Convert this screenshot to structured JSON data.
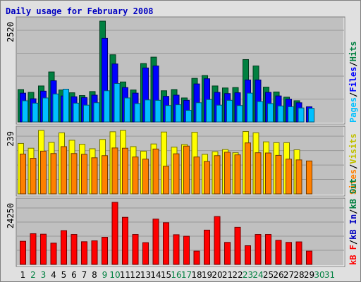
{
  "title": "Daily usage for February 2008",
  "colors": {
    "background": "#e0e0e0",
    "panel": "#c0c0c0",
    "hits": "#008040",
    "files": "#0000ff",
    "pages": "#00c0ff",
    "visits": "#ffff00",
    "sites": "#ff8000",
    "kbytes": "#ff0000",
    "weekend_label": "#008040",
    "weekday_label": "#000000",
    "title": "#0000c0"
  },
  "chart_data": [
    {
      "type": "bar",
      "panel": "hits-files-pages",
      "ymax_label": "2520",
      "ymax": 2520,
      "legend": [
        {
          "text": "Pages",
          "color": "#00c0ff"
        },
        {
          "text": "/",
          "color": "#000000"
        },
        {
          "text": "Files",
          "color": "#0000ff"
        },
        {
          "text": "/",
          "color": "#000000"
        },
        {
          "text": "Hits",
          "color": "#008040"
        }
      ],
      "categories": [
        "1",
        "2",
        "3",
        "4",
        "5",
        "6",
        "7",
        "8",
        "9",
        "10",
        "11",
        "12",
        "13",
        "14",
        "15",
        "16",
        "17",
        "18",
        "19",
        "20",
        "21",
        "22",
        "23",
        "24",
        "25",
        "26",
        "27",
        "28",
        "29"
      ],
      "series": [
        {
          "name": "Hits",
          "color": "#008040",
          "values": [
            810,
            740,
            900,
            1250,
            800,
            730,
            660,
            760,
            2520,
            1680,
            1000,
            800,
            1460,
            1620,
            780,
            810,
            600,
            1090,
            1160,
            900,
            850,
            860,
            1560,
            1400,
            870,
            750,
            620,
            530,
            0
          ]
        },
        {
          "name": "Files",
          "color": "#0000ff",
          "values": [
            720,
            580,
            770,
            1030,
            650,
            630,
            610,
            670,
            2090,
            1450,
            860,
            720,
            1350,
            1400,
            640,
            670,
            540,
            950,
            1080,
            740,
            710,
            730,
            1050,
            1050,
            740,
            650,
            570,
            480,
            380
          ]
        },
        {
          "name": "Pages",
          "color": "#00c0ff",
          "values": [
            530,
            470,
            600,
            700,
            820,
            470,
            420,
            480,
            780,
            960,
            600,
            460,
            550,
            540,
            410,
            430,
            290,
            480,
            560,
            420,
            540,
            410,
            720,
            510,
            460,
            400,
            380,
            350,
            340
          ]
        }
      ]
    },
    {
      "type": "bar",
      "panel": "visits-sites",
      "ymax_label": "239",
      "ymax": 239,
      "legend": [
        {
          "text": "Sites",
          "color": "#ff8000"
        },
        {
          "text": "/",
          "color": "#000000"
        },
        {
          "text": "Visits",
          "color": "#c0c000"
        }
      ],
      "categories": [
        "1",
        "2",
        "3",
        "4",
        "5",
        "6",
        "7",
        "8",
        "9",
        "10",
        "11",
        "12",
        "13",
        "14",
        "15",
        "16",
        "17",
        "18",
        "19",
        "20",
        "21",
        "22",
        "23",
        "24",
        "25",
        "26",
        "27",
        "28",
        "29"
      ],
      "series": [
        {
          "name": "Visits",
          "color": "#ffff00",
          "values": [
            190,
            172,
            239,
            194,
            230,
            202,
            187,
            170,
            205,
            234,
            239,
            178,
            161,
            188,
            233,
            176,
            186,
            232,
            149,
            159,
            167,
            155,
            235,
            230,
            196,
            193,
            193,
            166,
            0
          ]
        },
        {
          "name": "Sites",
          "color": "#ff8000",
          "values": [
            150,
            134,
            161,
            152,
            178,
            152,
            149,
            136,
            144,
            173,
            172,
            139,
            131,
            169,
            104,
            151,
            180,
            139,
            122,
            144,
            157,
            147,
            192,
            155,
            154,
            145,
            131,
            128,
            124
          ]
        }
      ]
    },
    {
      "type": "bar",
      "panel": "kbytes",
      "ymax_label": "24250",
      "ymax": 24250,
      "legend": [
        {
          "text": "kB F",
          "color": "#ff0000"
        },
        {
          "text": "/",
          "color": "#000000"
        },
        {
          "text": "kB In",
          "color": "#0000c0"
        },
        {
          "text": "/",
          "color": "#000000"
        },
        {
          "text": "kB Out",
          "color": "#008040"
        }
      ],
      "categories": [
        "1",
        "2",
        "3",
        "4",
        "5",
        "6",
        "7",
        "8",
        "9",
        "10",
        "11",
        "12",
        "13",
        "14",
        "15",
        "16",
        "17",
        "18",
        "19",
        "20",
        "21",
        "22",
        "23",
        "24",
        "25",
        "26",
        "27",
        "28",
        "29"
      ],
      "series": [
        {
          "name": "kB F",
          "color": "#ff0000",
          "values": [
            9040,
            12000,
            11800,
            8300,
            13200,
            11700,
            8860,
            9200,
            10600,
            24250,
            18400,
            11700,
            8500,
            17700,
            16300,
            11600,
            11000,
            5200,
            13400,
            18700,
            8600,
            14500,
            7300,
            11700,
            11700,
            9400,
            8600,
            8800,
            5200
          ]
        }
      ]
    }
  ],
  "x_axis": {
    "labels": [
      "1",
      "2",
      "3",
      "4",
      "5",
      "6",
      "7",
      "8",
      "9",
      "10",
      "11",
      "12",
      "13",
      "14",
      "15",
      "16",
      "17",
      "18",
      "19",
      "20",
      "21",
      "22",
      "23",
      "24",
      "25",
      "26",
      "27",
      "28",
      "29",
      "30",
      "31"
    ],
    "weekend": [
      false,
      true,
      true,
      false,
      false,
      false,
      false,
      false,
      true,
      true,
      false,
      false,
      false,
      false,
      false,
      true,
      true,
      false,
      false,
      false,
      false,
      false,
      true,
      true,
      false,
      false,
      false,
      false,
      false,
      true,
      true
    ]
  }
}
